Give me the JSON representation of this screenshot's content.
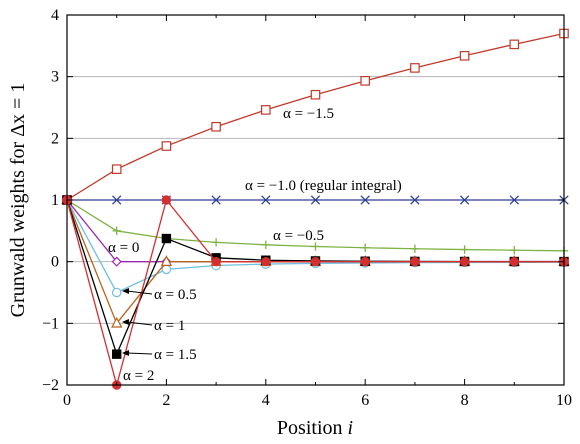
{
  "chart_data": {
    "type": "line",
    "xlabel": "Position",
    "xlabel_italic": "i",
    "ylabel": "Grunwald weights for Δx = 1",
    "xlim": [
      0,
      10
    ],
    "ylim": [
      -2,
      4
    ],
    "xticks": [
      "0",
      "2",
      "4",
      "6",
      "8",
      "10"
    ],
    "yticks": [
      "−2",
      "−1",
      "0",
      "1",
      "2",
      "3",
      "4"
    ],
    "grid": "horizontal",
    "series": [
      {
        "name": "α = −1.5",
        "color": "#c0392b",
        "marker": "open-square",
        "x": [
          0,
          1,
          2,
          3,
          4,
          5,
          6,
          7,
          8,
          9,
          10
        ],
        "y": [
          1,
          1.5,
          1.875,
          2.1875,
          2.4609,
          2.707,
          2.9326,
          3.1421,
          3.3385,
          3.5239,
          3.7001
        ]
      },
      {
        "name": "α = −1.0 (regular integral)",
        "color": "#2e3f94",
        "marker": "x",
        "x": [
          0,
          1,
          2,
          3,
          4,
          5,
          6,
          7,
          8,
          9,
          10
        ],
        "y": [
          1,
          1,
          1,
          1,
          1,
          1,
          1,
          1,
          1,
          1,
          1
        ]
      },
      {
        "name": "α = −0.5",
        "color": "#7cb342",
        "marker": "plus",
        "x": [
          0,
          1,
          2,
          3,
          4,
          5,
          6,
          7,
          8,
          9,
          10
        ],
        "y": [
          1,
          0.5,
          0.375,
          0.3125,
          0.2734,
          0.2461,
          0.2256,
          0.2095,
          0.1964,
          0.1855,
          0.1762
        ]
      },
      {
        "name": "α = 0",
        "color": "#9c27b0",
        "marker": "open-diamond",
        "x": [
          0,
          1,
          2,
          3,
          4,
          5,
          6,
          7,
          8,
          9,
          10
        ],
        "y": [
          1,
          0,
          0,
          0,
          0,
          0,
          0,
          0,
          0,
          0,
          0
        ]
      },
      {
        "name": "α = 0.5",
        "color": "#6bbfe0",
        "marker": "open-circle",
        "x": [
          0,
          1,
          2,
          3,
          4,
          5,
          6,
          7,
          8,
          9,
          10
        ],
        "y": [
          1,
          -0.5,
          -0.125,
          -0.0625,
          -0.0391,
          -0.0273,
          -0.0205,
          -0.0161,
          -0.0131,
          -0.0109,
          -0.0093
        ]
      },
      {
        "name": "α = 1",
        "color": "#b5651d",
        "marker": "open-triangle",
        "x": [
          0,
          1,
          2,
          3,
          4,
          5,
          6,
          7,
          8,
          9,
          10
        ],
        "y": [
          1,
          -1,
          0,
          0,
          0,
          0,
          0,
          0,
          0,
          0,
          0
        ]
      },
      {
        "name": "α = 1.5",
        "color": "#000000",
        "marker": "filled-square",
        "x": [
          0,
          1,
          2,
          3,
          4,
          5,
          6,
          7,
          8,
          9,
          10
        ],
        "y": [
          1,
          -1.5,
          0.375,
          0.0625,
          0.0234,
          0.0117,
          0.0068,
          0.0044,
          0.003,
          0.0021,
          0.0016
        ]
      },
      {
        "name": "α = 2",
        "color": "#d32f2f",
        "marker": "filled-circle",
        "x": [
          0,
          1,
          2,
          3,
          4,
          5,
          6,
          7,
          8,
          9,
          10
        ],
        "y": [
          1,
          -2,
          1,
          0,
          0,
          0,
          0,
          0,
          0,
          0,
          0
        ]
      }
    ],
    "annotations": [
      {
        "text": "α = −1.5",
        "series": "α = −1.5"
      },
      {
        "text": "α = −1.0 (regular integral)",
        "series": "α = −1.0 (regular integral)"
      },
      {
        "text": "α = −0.5",
        "series": "α = −0.5"
      },
      {
        "text": "α = 0",
        "series": "α = 0"
      },
      {
        "text": "α = 0.5",
        "series": "α = 0.5"
      },
      {
        "text": "α = 1",
        "series": "α = 1"
      },
      {
        "text": "α = 1.5",
        "series": "α = 1.5"
      },
      {
        "text": "α = 2",
        "series": "α = 2"
      }
    ]
  }
}
